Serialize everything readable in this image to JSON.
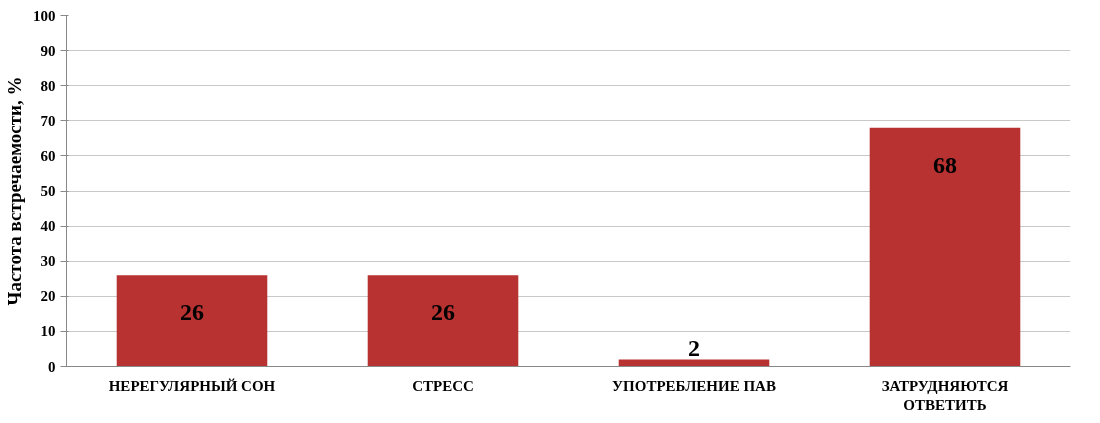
{
  "chart_data": {
    "type": "bar",
    "ylabel": "Частота встречаемости, %",
    "categories": [
      "НЕРЕГУЛЯРНЫЙ СОН",
      "СТРЕСС",
      "УПОТРЕБЛЕНИЕ ПАВ",
      "ЗАТРУДНЯЮТСЯ ОТВЕТИТЬ"
    ],
    "values": [
      26,
      26,
      2,
      68
    ],
    "color": "#b83232",
    "ylim": [
      0,
      100
    ],
    "yticks": [
      0,
      10,
      20,
      30,
      40,
      50,
      60,
      70,
      80,
      90,
      100
    ],
    "grid": "y",
    "data_labels": true
  }
}
